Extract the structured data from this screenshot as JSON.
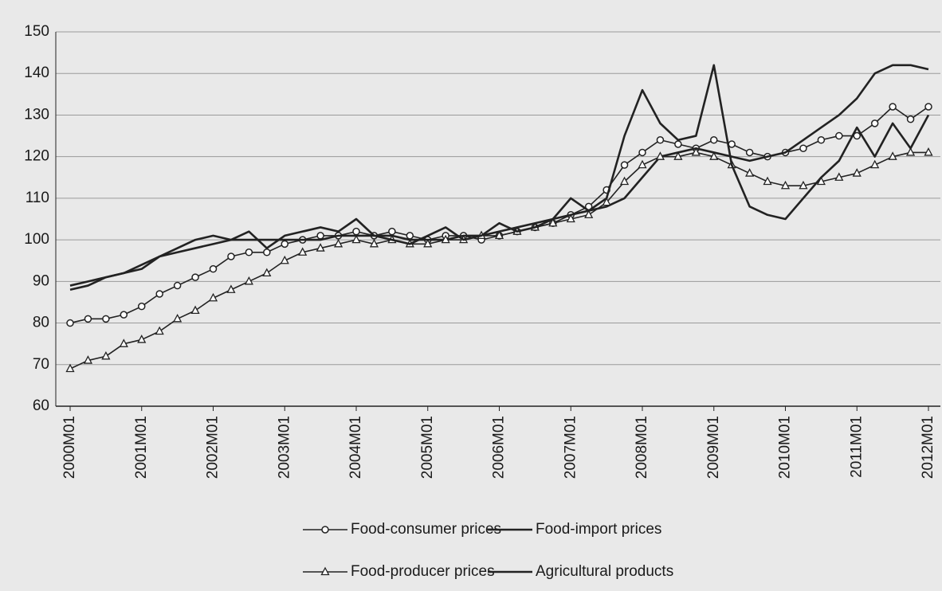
{
  "chart_data": {
    "type": "line",
    "categories": [
      "2000M01",
      null,
      null,
      null,
      "2001M01",
      null,
      null,
      null,
      "2002M01",
      null,
      null,
      null,
      "2003M01",
      null,
      null,
      null,
      "2004M01",
      null,
      null,
      null,
      "2005M01",
      null,
      null,
      null,
      "2006M01",
      null,
      null,
      null,
      "2007M01",
      null,
      null,
      null,
      "2008M01",
      null,
      null,
      null,
      "2009M01",
      null,
      null,
      null,
      "2010M01",
      null,
      null,
      null,
      "2011M01",
      null,
      null,
      null,
      "2012M01"
    ],
    "series": [
      {
        "name": "Food-consumer prices",
        "color": "#222222",
        "marker": "circle",
        "values": [
          80,
          81,
          81,
          82,
          84,
          87,
          89,
          91,
          93,
          96,
          97,
          97,
          99,
          100,
          101,
          101,
          102,
          101,
          102,
          101,
          100,
          101,
          101,
          100,
          101,
          102,
          103,
          104,
          106,
          108,
          112,
          118,
          121,
          124,
          123,
          122,
          124,
          123,
          121,
          120,
          121,
          122,
          124,
          125,
          125,
          128,
          132,
          129,
          132
        ]
      },
      {
        "name": "Food-import prices",
        "color": "#222222",
        "marker": "none",
        "values": [
          89,
          90,
          91,
          92,
          94,
          96,
          97,
          98,
          99,
          100,
          100,
          100,
          100,
          100,
          100,
          101,
          101,
          101,
          101,
          100,
          100,
          100,
          101,
          101,
          102,
          103,
          104,
          105,
          106,
          107,
          108,
          110,
          115,
          120,
          121,
          122,
          121,
          120,
          119,
          120,
          121,
          124,
          127,
          130,
          134,
          140,
          142,
          142,
          141
        ]
      },
      {
        "name": "Food-producer prices",
        "color": "#222222",
        "marker": "triangle",
        "values": [
          69,
          71,
          72,
          75,
          76,
          78,
          81,
          83,
          86,
          88,
          90,
          92,
          95,
          97,
          98,
          99,
          100,
          99,
          100,
          99,
          99,
          100,
          100,
          101,
          101,
          102,
          103,
          104,
          105,
          106,
          109,
          114,
          118,
          120,
          120,
          121,
          120,
          118,
          116,
          114,
          113,
          113,
          114,
          115,
          116,
          118,
          120,
          121,
          121
        ]
      },
      {
        "name": "Agricultural products",
        "color": "#222222",
        "marker": "none",
        "values": [
          88,
          89,
          91,
          92,
          93,
          96,
          98,
          100,
          101,
          100,
          102,
          98,
          101,
          102,
          103,
          102,
          105,
          101,
          100,
          99,
          101,
          103,
          100,
          101,
          104,
          102,
          103,
          105,
          110,
          107,
          110,
          125,
          136,
          128,
          124,
          125,
          142,
          118,
          108,
          106,
          105,
          110,
          115,
          119,
          127,
          120,
          128,
          122,
          130
        ]
      }
    ],
    "ylim": [
      60,
      150
    ],
    "yticks": [
      60,
      70,
      80,
      90,
      100,
      110,
      120,
      130,
      140,
      150
    ],
    "grid": true,
    "legend": "bottom"
  }
}
